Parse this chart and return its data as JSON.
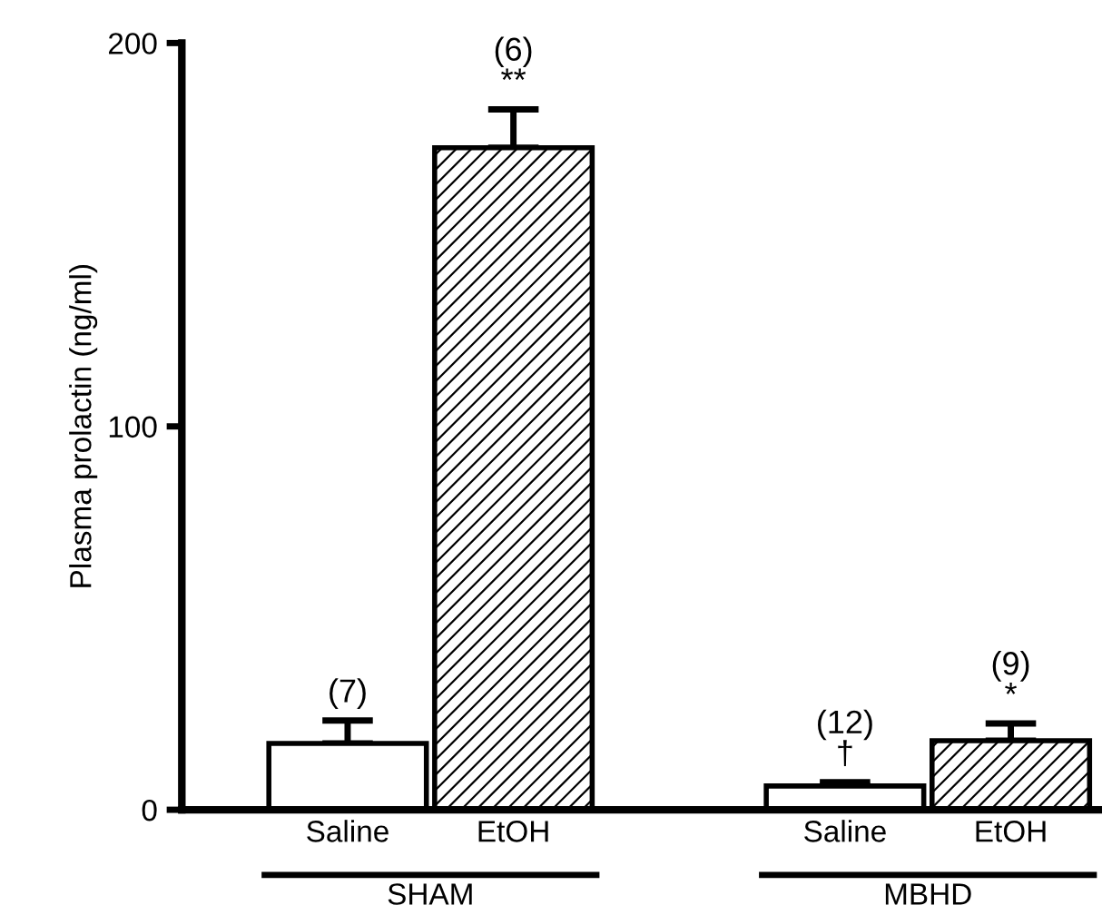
{
  "chart_data": {
    "type": "bar",
    "ylabel": "Plasma prolactin (ng/ml)",
    "categories": [
      "Saline",
      "EtOH",
      null,
      "Saline",
      "EtOH"
    ],
    "series": [
      {
        "color": "#ffffff",
        "values": [
          17.3,
          null,
          null,
          6.2,
          null
        ],
        "errors": [
          6,
          null,
          null,
          1,
          null
        ]
      },
      {
        "color": "#000000",
        "values": [
          null,
          172.7,
          null,
          null,
          18
        ],
        "errors": [
          null,
          10,
          null,
          null,
          4.5
        ]
      }
    ],
    "annotations": [
      "(7)",
      "(6)\n**",
      "(12)\n†",
      "(9)\n*",
      "SHAM",
      "MBHD"
    ],
    "ylim": [
      0,
      200
    ],
    "yticks": [
      0,
      100,
      200
    ],
    "grid": false,
    "legend": false
  }
}
